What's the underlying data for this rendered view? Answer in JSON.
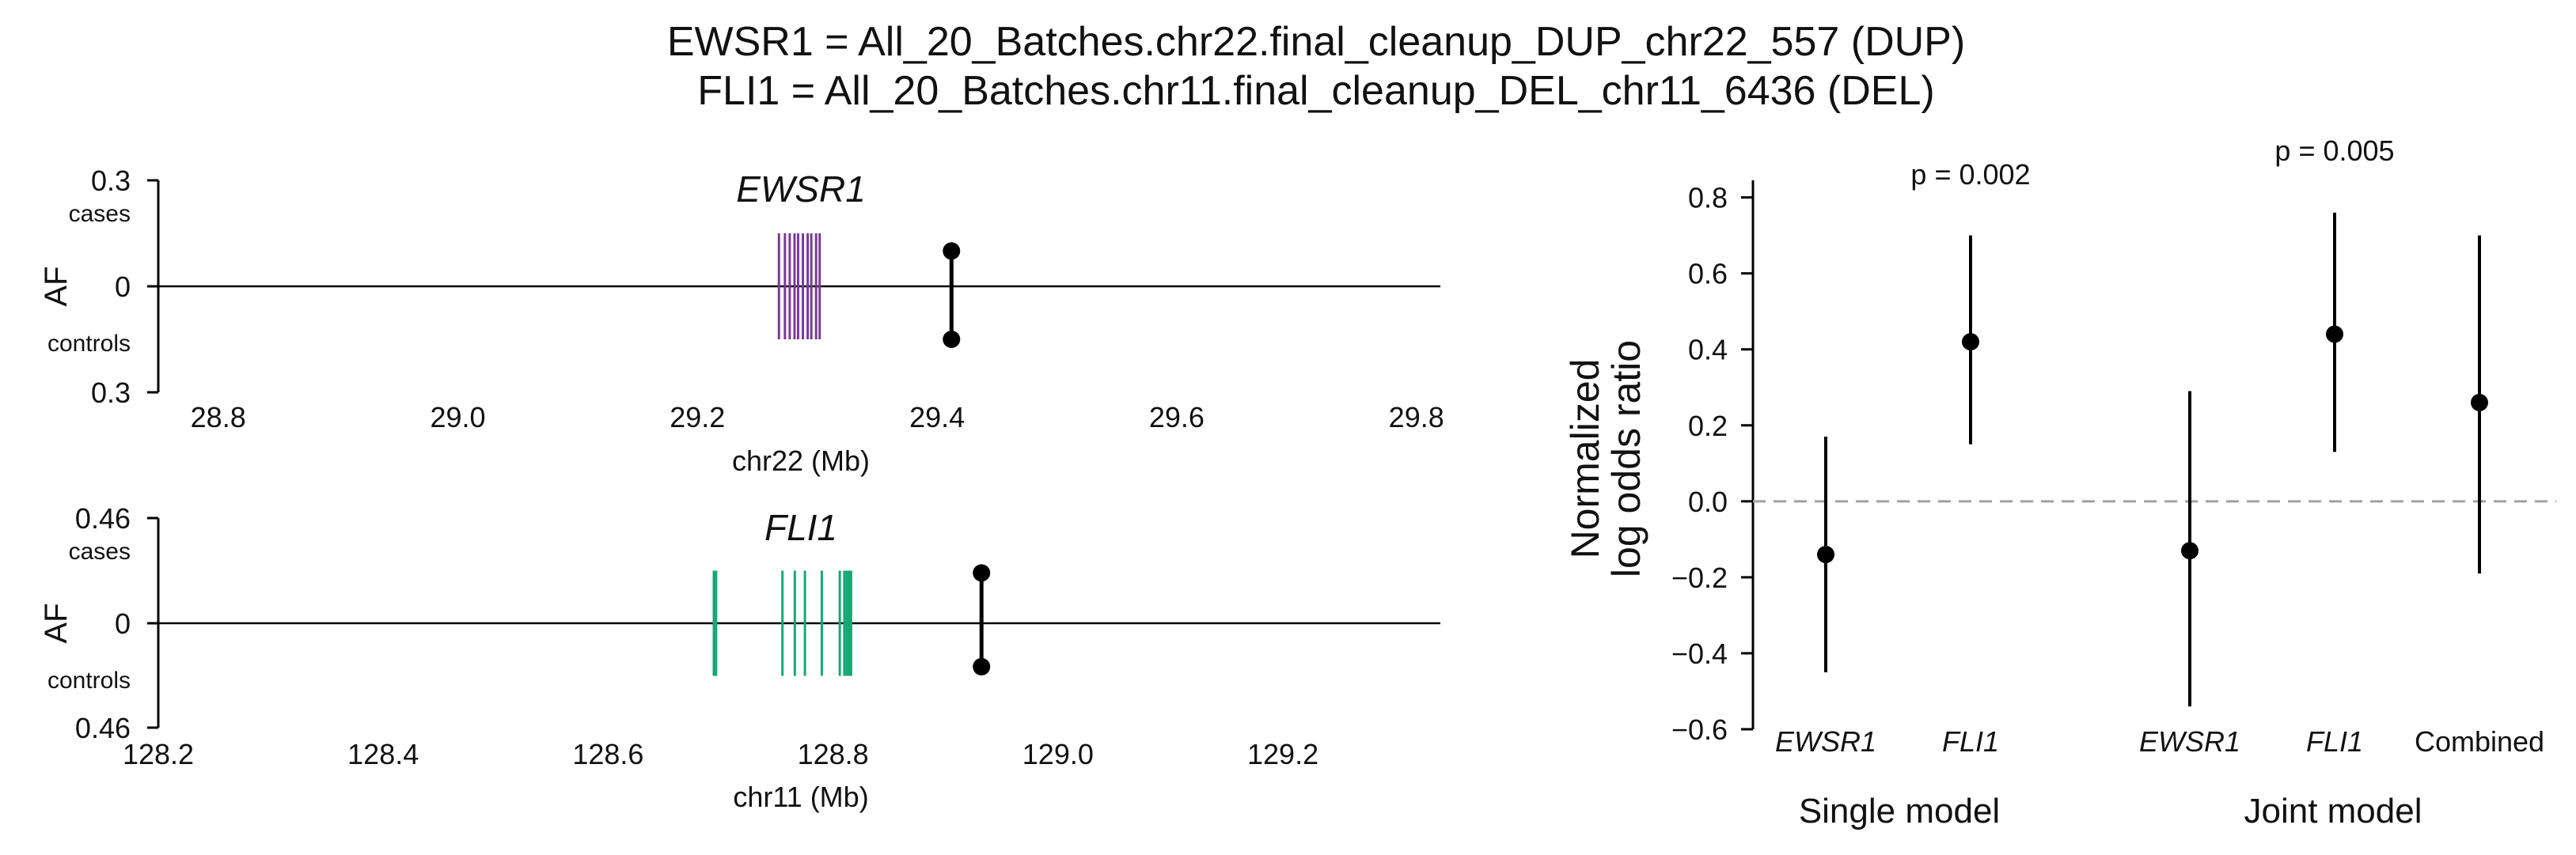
{
  "chart_data": [
    {
      "type": "scatter",
      "panel": "top-locus",
      "title_line1": "EWSR1 = All_20_Batches.chr22.final_cleanup_DUP_chr22_557 (DUP)",
      "title_line2": "FLI1 = All_20_Batches.chr11.final_cleanup_DEL_chr11_6436 (DEL)",
      "gene_label": "EWSR1",
      "xlabel": "chr22 (Mb)",
      "ylabel": "AF",
      "cases_label": "cases",
      "controls_label": "controls",
      "ytick_top": "0.3",
      "ytick_mid": "0",
      "ytick_bottom": "0.3",
      "af_max": 0.3,
      "xlim": [
        28.75,
        29.82
      ],
      "xticks": [
        "28.8",
        "29.0",
        "29.2",
        "29.4",
        "29.6",
        "29.8"
      ],
      "gene_color": "#7b3a96",
      "exons_mb": [
        29.268,
        29.273,
        29.277,
        29.281,
        29.284,
        29.288,
        29.292,
        29.295,
        29.299,
        29.302
      ],
      "exon_half_height": 0.15,
      "sv": {
        "position_mb": 29.412,
        "case_af": 0.1,
        "control_af": 0.15
      }
    },
    {
      "type": "scatter",
      "panel": "bottom-locus",
      "gene_label": "FLI1",
      "xlabel": "chr11 (Mb)",
      "ylabel": "AF",
      "cases_label": "cases",
      "controls_label": "controls",
      "ytick_top": "0.46",
      "ytick_mid": "0",
      "ytick_bottom": "0.46",
      "af_max": 0.46,
      "xlim": [
        128.2,
        129.34
      ],
      "xticks": [
        "128.2",
        "128.4",
        "128.6",
        "128.8",
        "129.0",
        "129.2"
      ],
      "gene_color": "#17a874",
      "exons_mb": [
        128.694,
        128.696,
        128.755,
        128.766,
        128.775,
        128.79,
        128.806,
        128.81,
        128.812,
        128.814,
        128.816
      ],
      "exon_half_height": 0.23,
      "sv": {
        "position_mb": 128.932,
        "case_af": 0.22,
        "control_af": 0.19
      }
    },
    {
      "type": "scatter",
      "panel": "forest",
      "ylabel_line1": "Normalized",
      "ylabel_line2": "log odds ratio",
      "ylim": [
        -0.6,
        0.82
      ],
      "yticks": [
        "0.8",
        "0.6",
        "0.4",
        "0.2",
        "0.0",
        "−0.2",
        "−0.4",
        "−0.6"
      ],
      "reference_line": 0.0,
      "reference_color": "#a0a0a0",
      "groups": [
        {
          "name": "Single model",
          "p_label": "p = 0.002",
          "points": [
            {
              "label": "EWSR1",
              "estimate": -0.14,
              "lower": -0.45,
              "upper": 0.17
            },
            {
              "label": "FLI1",
              "estimate": 0.42,
              "lower": 0.15,
              "upper": 0.7
            }
          ]
        },
        {
          "name": "Joint model",
          "p_label": "p = 0.005",
          "points": [
            {
              "label": "EWSR1",
              "estimate": -0.13,
              "lower": -0.54,
              "upper": 0.29
            },
            {
              "label": "FLI1",
              "estimate": 0.44,
              "lower": 0.13,
              "upper": 0.76
            },
            {
              "label": "Combined",
              "estimate": 0.26,
              "lower": -0.19,
              "upper": 0.7
            }
          ]
        }
      ]
    }
  ]
}
